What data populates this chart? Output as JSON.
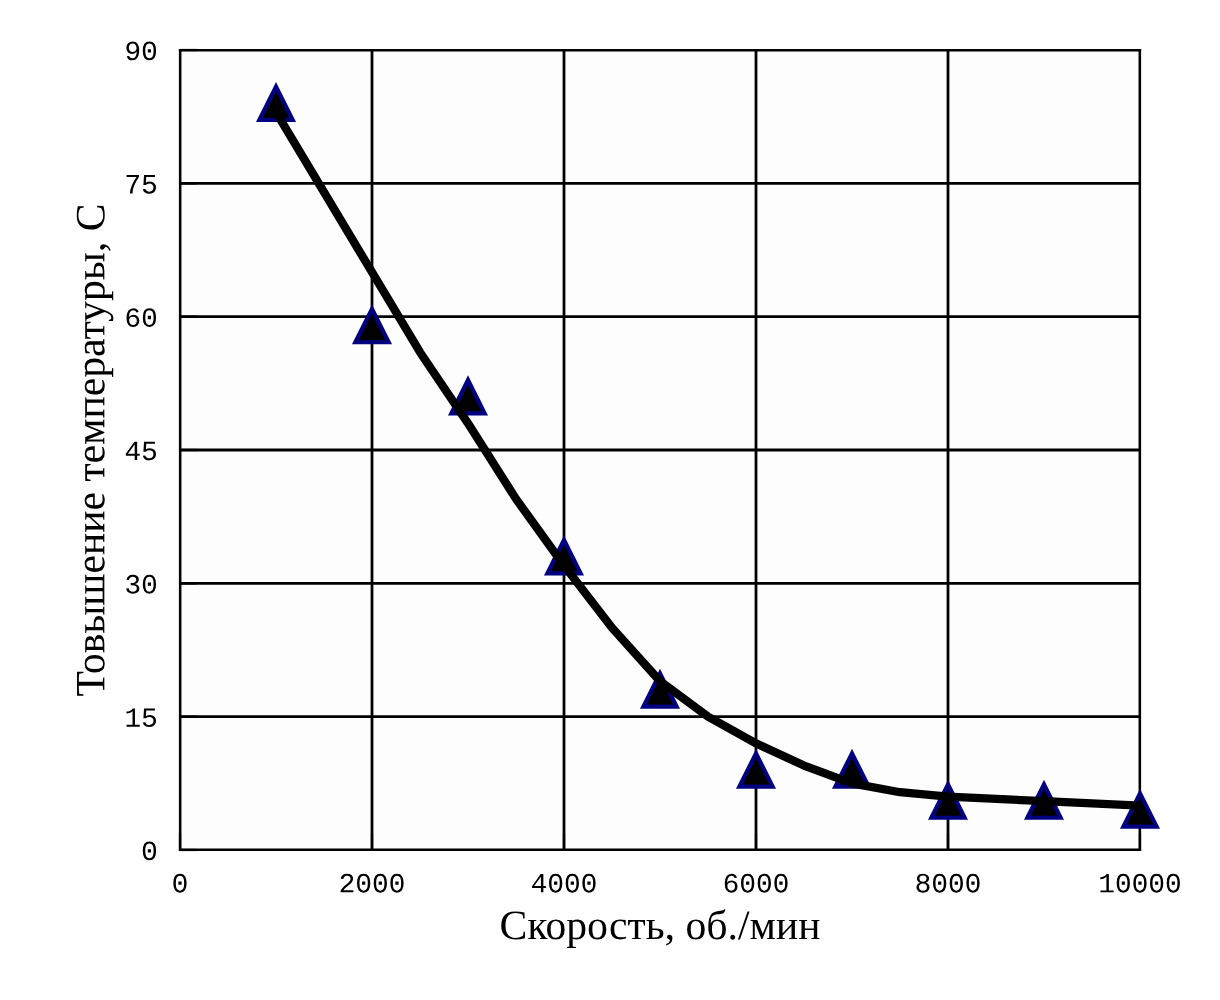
{
  "chart_data": {
    "type": "scatter",
    "xlabel": "Скорость, об./мин",
    "ylabel": "Товышение температуры, С",
    "xlim": [
      0,
      10000
    ],
    "ylim": [
      0,
      90
    ],
    "xticks": [
      0,
      2000,
      4000,
      6000,
      8000,
      10000
    ],
    "yticks": [
      0,
      15,
      30,
      45,
      60,
      75,
      90
    ],
    "grid": true,
    "marker": "triangle",
    "series": [
      {
        "color": "#000080",
        "x": [
          1000,
          2000,
          3000,
          4000,
          5000,
          6000,
          7000,
          8000,
          9000,
          10000
        ],
        "values": [
          84,
          59,
          51,
          33,
          18,
          9,
          9,
          5.5,
          5.5,
          4.5
        ]
      },
      {
        "type": "line",
        "color": "#000000",
        "line_style": "solid",
        "marker": "none",
        "x": [
          1000,
          1500,
          2000,
          2500,
          3000,
          3500,
          4000,
          4500,
          5000,
          5500,
          6000,
          6500,
          7000,
          7500,
          8000,
          9000,
          10000
        ],
        "values": [
          83,
          74,
          65,
          56,
          48,
          39.5,
          32,
          25,
          19,
          15,
          12,
          9.5,
          7.5,
          6.5,
          6,
          5.5,
          5
        ]
      }
    ]
  }
}
